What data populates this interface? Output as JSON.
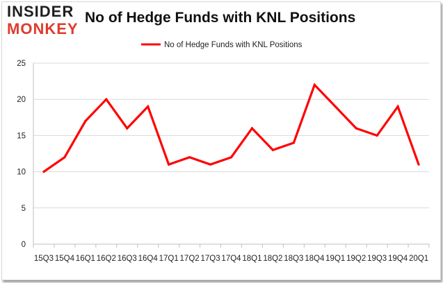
{
  "header": {
    "logo_top": "INSIDER",
    "logo_bottom": "MONKEY"
  },
  "chart_data": {
    "type": "line",
    "title": "No of Hedge Funds with KNL Positions",
    "xlabel": "",
    "ylabel": "",
    "categories": [
      "15Q3",
      "15Q4",
      "16Q1",
      "16Q2",
      "16Q3",
      "16Q4",
      "17Q1",
      "17Q2",
      "17Q3",
      "17Q4",
      "18Q1",
      "18Q2",
      "18Q3",
      "18Q4",
      "19Q1",
      "19Q2",
      "19Q3",
      "19Q4",
      "20Q1"
    ],
    "series": [
      {
        "name": "No of Hedge Funds with KNL Positions",
        "values": [
          10,
          12,
          17,
          20,
          16,
          19,
          11,
          12,
          11,
          12,
          16,
          13,
          14,
          22,
          19,
          16,
          15,
          19,
          11
        ],
        "color": "#ff0000"
      }
    ],
    "ylim": [
      0,
      25
    ],
    "yticks": [
      0,
      5,
      10,
      15,
      20,
      25
    ],
    "grid": true,
    "legend": "top-center"
  },
  "colors": {
    "grid": "#d9d9d9",
    "axis": "#bfbfbf",
    "logo_accent": "#e03a2e"
  }
}
